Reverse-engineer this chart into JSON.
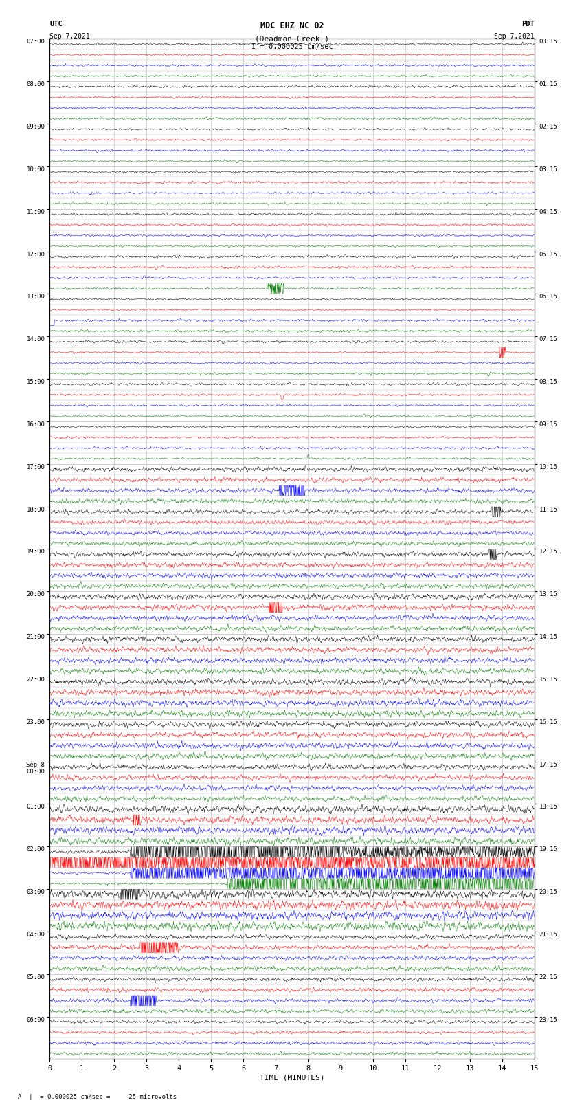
{
  "title_line1": "MDC EHZ NC 02",
  "title_line2": "(Deadman Creek )",
  "title_line3": "I = 0.000025 cm/sec",
  "label_utc": "UTC",
  "label_pdt": "PDT",
  "date_left": "Sep 7,2021",
  "date_right": "Sep 7,2021",
  "xlabel": "TIME (MINUTES)",
  "footnote": "A  |  = 0.000025 cm/sec =     25 microvolts",
  "utc_labels": [
    "07:00",
    "08:00",
    "09:00",
    "10:00",
    "11:00",
    "12:00",
    "13:00",
    "14:00",
    "15:00",
    "16:00",
    "17:00",
    "18:00",
    "19:00",
    "20:00",
    "21:00",
    "22:00",
    "23:00",
    "Sep 8\n00:00",
    "01:00",
    "02:00",
    "03:00",
    "04:00",
    "05:00",
    "06:00"
  ],
  "pdt_labels": [
    "00:15",
    "01:15",
    "02:15",
    "03:15",
    "04:15",
    "05:15",
    "06:15",
    "07:15",
    "08:15",
    "09:15",
    "10:15",
    "11:15",
    "12:15",
    "13:15",
    "14:15",
    "15:15",
    "16:15",
    "17:15",
    "18:15",
    "19:15",
    "20:15",
    "21:15",
    "22:15",
    "23:15"
  ],
  "colors": [
    "black",
    "red",
    "blue",
    "green"
  ],
  "background_color": "white",
  "grid_color": "#bbbbbb",
  "xmin": 0,
  "xmax": 15
}
